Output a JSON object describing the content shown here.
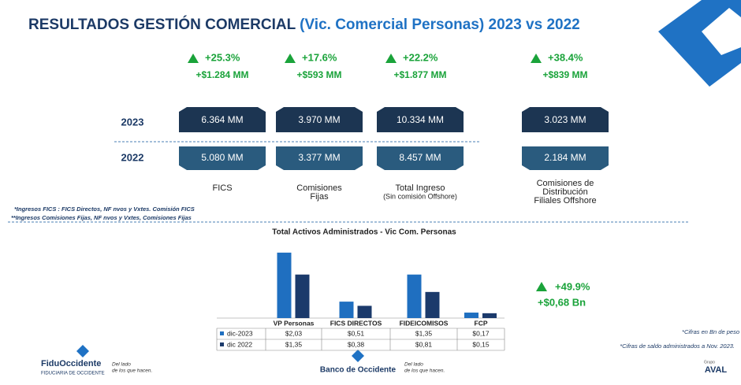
{
  "header": {
    "title": "RESULTADOS GESTIÓN COMERCIAL",
    "subtitle": "(Vic. Comercial Personas) 2023 vs 2022"
  },
  "row_labels": [
    "2023",
    "2022"
  ],
  "kpis": [
    {
      "delta_pct": "+25.3%",
      "delta_abs": "+$1.284 MM",
      "v2023": "6.364 MM",
      "v2022": "5.080 MM",
      "label": [
        "FICS"
      ]
    },
    {
      "delta_pct": "+17.6%",
      "delta_abs": "+$593 MM",
      "v2023": "3.970 MM",
      "v2022": "3.377 MM",
      "label": [
        "Comisiones",
        "Fijas"
      ]
    },
    {
      "delta_pct": "+22.2%",
      "delta_abs": "+$1.877 MM",
      "v2023": "10.334 MM",
      "v2022": "8.457 MM",
      "label": [
        "Total Ingreso",
        "(Sin comisión Offshore)"
      ]
    },
    {
      "delta_pct": "+38.4%",
      "delta_abs": "+$839 MM",
      "v2023": "3.023  MM",
      "v2022": "2.184  MM",
      "label": [
        "Comisiones de",
        "Distribución",
        "Filiales Offshore"
      ]
    }
  ],
  "notes": [
    "*Ingresos FICS : FICS Directos, NF nvos y Vxtes. Comisión FICS",
    "**Ingresos Comisiones Fijas, NF nvos y Vxtes, Comisiones Fijas"
  ],
  "chart_data": {
    "type": "bar",
    "title": "Total Activos Administrados - Vic Com. Personas",
    "categories": [
      "VP Personas",
      "FICS DIRECTOS",
      "FIDEICOMISOS",
      "FCP"
    ],
    "series": [
      {
        "name": "dic-2023",
        "color": "#1f6fc0",
        "values": [
          2.03,
          0.51,
          1.35,
          0.17
        ],
        "value_labels": [
          "$2,03",
          "$0,51",
          "$1,35",
          "$0,17"
        ]
      },
      {
        "name": "dic 2022",
        "color": "#1b3a6b",
        "values": [
          1.35,
          0.38,
          0.81,
          0.15
        ],
        "value_labels": [
          "$1,35",
          "$0,38",
          "$0,81",
          "$0,15"
        ]
      }
    ],
    "ylim": [
      0,
      2.1
    ]
  },
  "total": {
    "delta_pct": "+49.9%",
    "delta_abs": "+$0,68 Bn"
  },
  "footnotes": [
    "*Cifras en Bn de peso",
    "*Cifras de saldo administrados a Nov. 2023."
  ],
  "logos": {
    "fidu": "FiduOccidente",
    "fidu_sub": "FIDUCIARIA DE OCCIDENTE",
    "slogan1": [
      "Del lado",
      "de los que hacen."
    ],
    "banco": "Banco de Occidente",
    "slogan2": [
      "Del lado",
      "de los que hacen."
    ],
    "aval_small": "Grupo",
    "aval": "AVAL"
  }
}
